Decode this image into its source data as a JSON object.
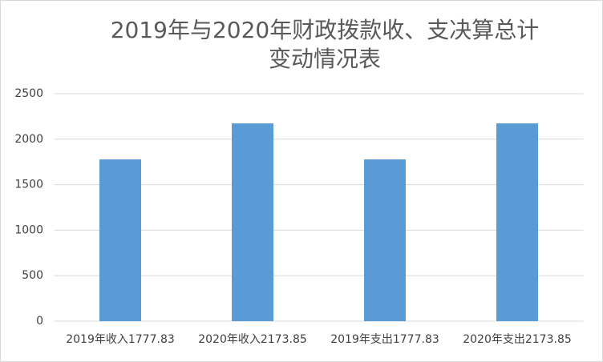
{
  "chart_data": {
    "type": "bar",
    "title": "2019年与2020年财政拨款收、支决算总计变动情况表",
    "categories": [
      "2019年收入1777.83",
      "2020年收入2173.85",
      "2019年支出1777.83",
      "2020年支出2173.85"
    ],
    "values": [
      1777.83,
      2173.85,
      1777.83,
      2173.85
    ],
    "color": "#5b9bd5",
    "ylim": [
      0,
      2500
    ],
    "yticks": [
      0,
      500,
      1000,
      1500,
      2000,
      2500
    ],
    "grid": true
  }
}
